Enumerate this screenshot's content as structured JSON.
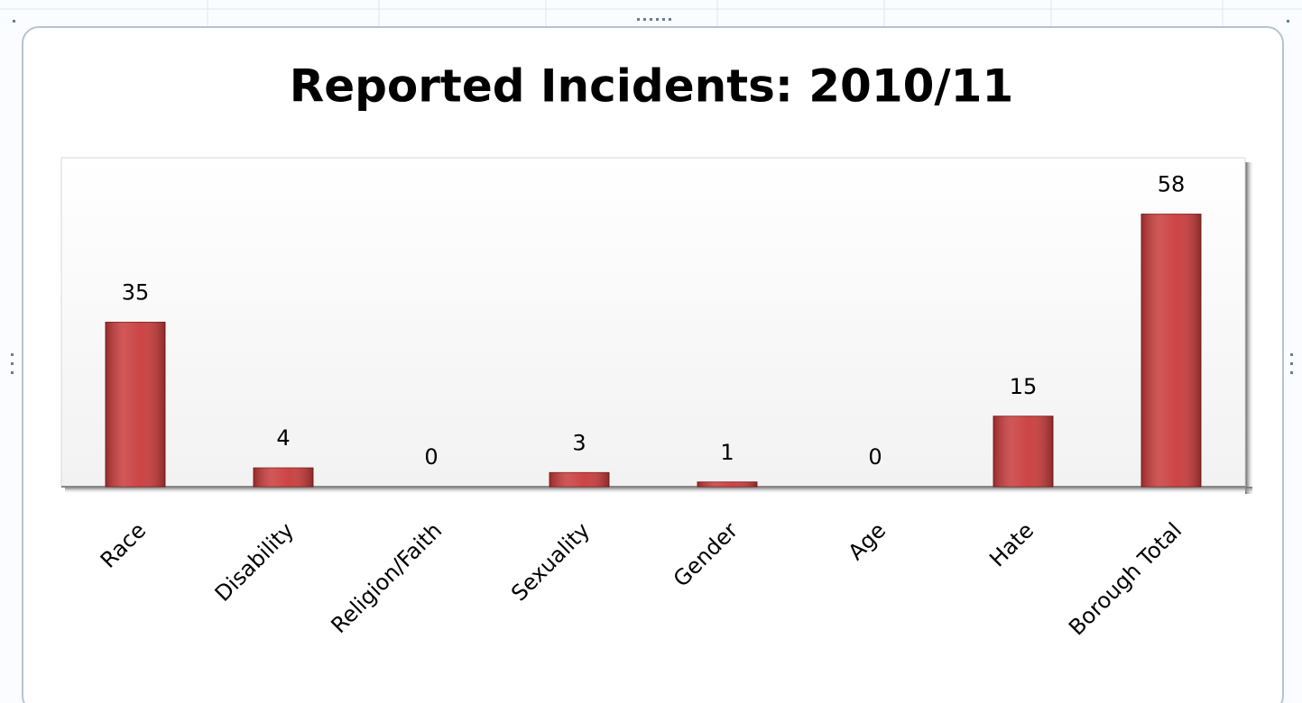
{
  "chart_data": {
    "type": "bar",
    "title": "Reported Incidents: 2010/11",
    "categories": [
      "Race",
      "Disability",
      "Religion/Faith",
      "Sexuality",
      "Gender",
      "Age",
      "Hate",
      "Borough Total"
    ],
    "values": [
      35,
      4,
      0,
      3,
      1,
      0,
      15,
      58
    ],
    "color": "#c93a3a",
    "ylim": [
      0,
      70
    ]
  }
}
